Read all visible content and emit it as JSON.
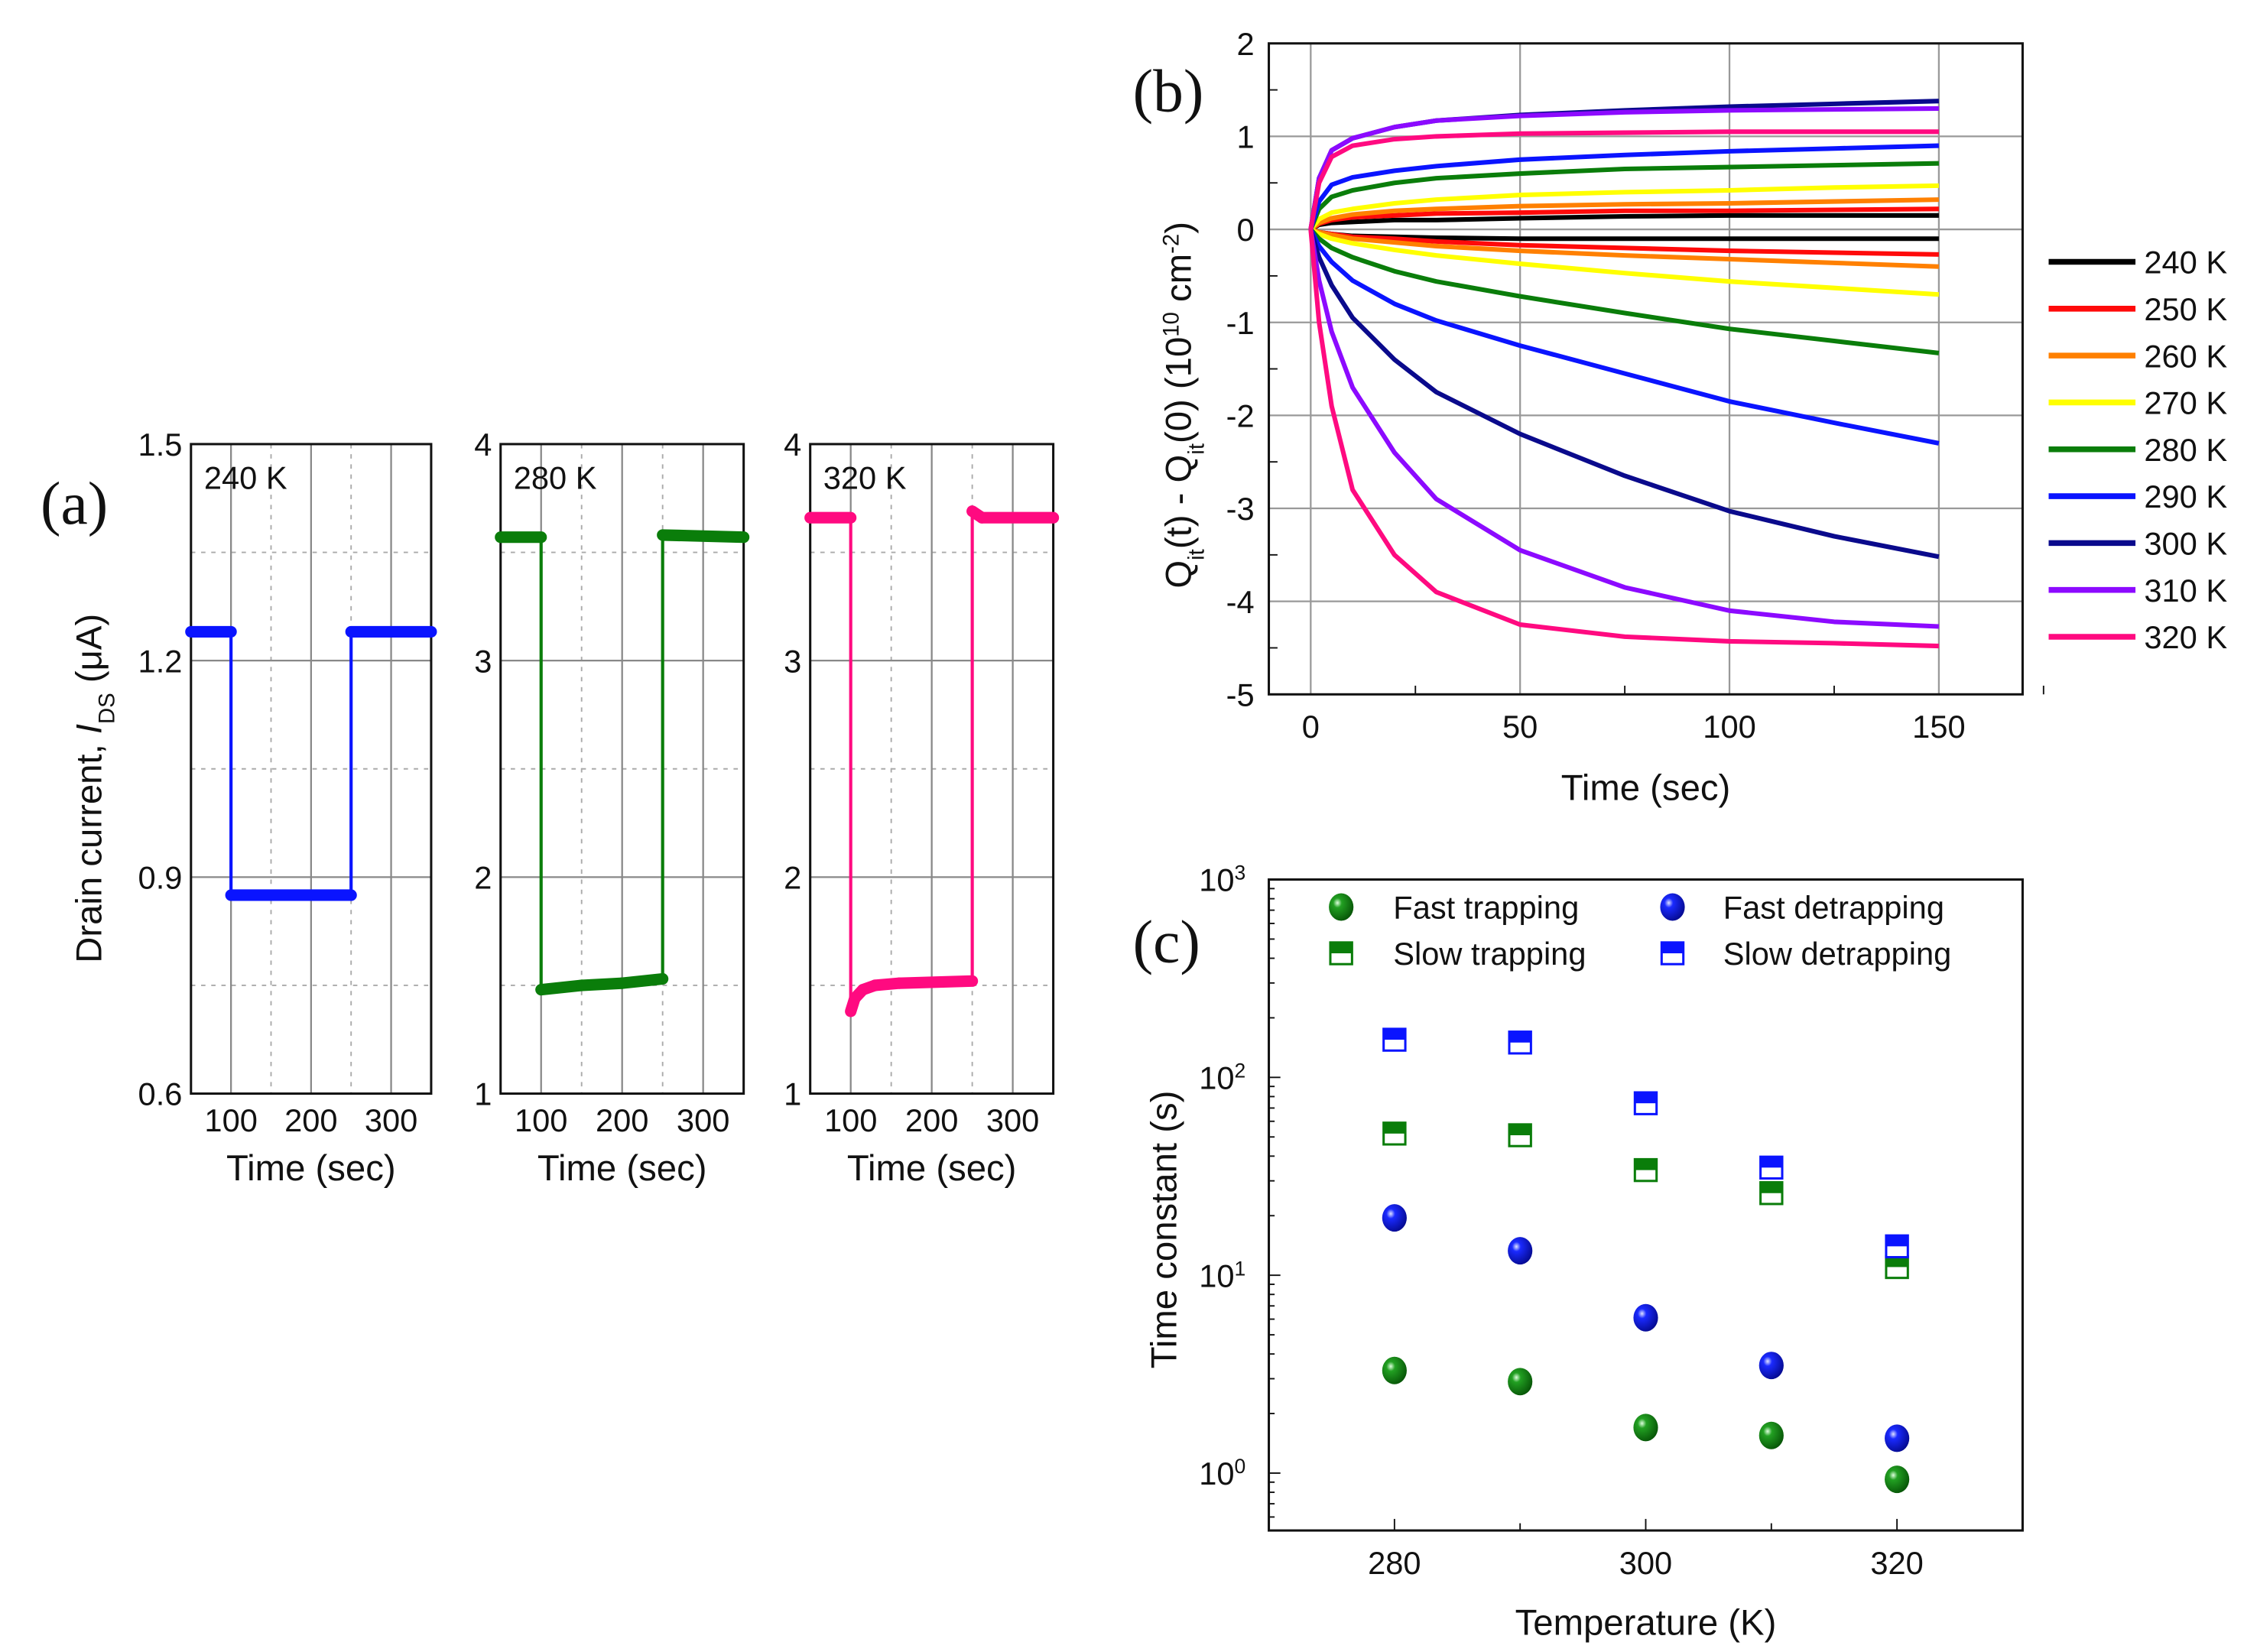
{
  "chart_data": [
    {
      "panel_label": "(a)",
      "type": "line",
      "ylabel_parts": [
        {
          "t": "Drain current, "
        },
        {
          "t": "I",
          "italic": true
        },
        {
          "t": "DS",
          "sub": true
        },
        {
          "t": " (μA)"
        }
      ],
      "subplots": [
        {
          "temp_label": "240 K",
          "color": "#0a14ff",
          "xlabel": "Time (sec)",
          "xlim": [
            50,
            350
          ],
          "ylim": [
            0.6,
            1.5
          ],
          "xticks": [
            "100",
            "200",
            "300"
          ],
          "xtick_values": [
            100,
            200,
            300
          ],
          "yticks": [
            "0.6",
            "0.9",
            "1.2",
            "1.5"
          ],
          "ytick_values": [
            0.6,
            0.9,
            1.2,
            1.5
          ],
          "yminor": [
            0.75,
            1.05,
            1.35
          ],
          "points": [
            [
              50,
              1.24
            ],
            [
              100,
              1.24
            ],
            [
              100,
              0.875
            ],
            [
              250,
              0.875
            ],
            [
              250,
              1.24
            ],
            [
              350,
              1.24
            ]
          ]
        },
        {
          "temp_label": "280 K",
          "color": "#0a7d0a",
          "xlabel": "Time (sec)",
          "xlim": [
            50,
            350
          ],
          "ylim": [
            1,
            4
          ],
          "xticks": [
            "100",
            "200",
            "300"
          ],
          "xtick_values": [
            100,
            200,
            300
          ],
          "yticks": [
            "1",
            "2",
            "3",
            "4"
          ],
          "ytick_values": [
            1,
            2,
            3,
            4
          ],
          "yminor": [
            1.5,
            2.5,
            3.5
          ],
          "points": [
            [
              50,
              3.57
            ],
            [
              100,
              3.57
            ],
            [
              100,
              1.48
            ],
            [
              150,
              1.5
            ],
            [
              200,
              1.51
            ],
            [
              250,
              1.53
            ],
            [
              250,
              3.58
            ],
            [
              350,
              3.57
            ]
          ]
        },
        {
          "temp_label": "320 K",
          "color": "#ff0a80",
          "xlabel": "Time (sec)",
          "xlim": [
            50,
            350
          ],
          "ylim": [
            1,
            4
          ],
          "xticks": [
            "100",
            "200",
            "300"
          ],
          "xtick_values": [
            100,
            200,
            300
          ],
          "yticks": [
            "1",
            "2",
            "3",
            "4"
          ],
          "ytick_values": [
            1,
            2,
            3,
            4
          ],
          "yminor": [
            1.5,
            2.5,
            3.5
          ],
          "points": [
            [
              50,
              3.66
            ],
            [
              100,
              3.66
            ],
            [
              100,
              1.38
            ],
            [
              105,
              1.44
            ],
            [
              115,
              1.48
            ],
            [
              130,
              1.5
            ],
            [
              160,
              1.51
            ],
            [
              250,
              1.52
            ],
            [
              250,
              3.69
            ],
            [
              262,
              3.66
            ],
            [
              350,
              3.66
            ]
          ]
        }
      ]
    },
    {
      "panel_label": "(b)",
      "type": "line",
      "xlabel": "Time (sec)",
      "ylabel_parts": [
        {
          "t": "Q"
        },
        {
          "t": "it",
          "sub": true
        },
        {
          "t": "(t) - Q"
        },
        {
          "t": "it",
          "sub": true
        },
        {
          "t": "(0) (10"
        },
        {
          "t": "10",
          "sup": true
        },
        {
          "t": " cm"
        },
        {
          "t": "-2",
          "sup": true
        },
        {
          "t": ")"
        }
      ],
      "xlim": [
        -10,
        170
      ],
      "ylim": [
        -5,
        2
      ],
      "xticks": [
        "0",
        "50",
        "100",
        "150"
      ],
      "xtick_values": [
        0,
        50,
        100,
        150
      ],
      "yticks": [
        "-5",
        "-4",
        "-3",
        "-2",
        "-1",
        "0",
        "1",
        "2"
      ],
      "ytick_values": [
        -5,
        -4,
        -3,
        -2,
        -1,
        0,
        1,
        2
      ],
      "grid": true,
      "legend_position": "right",
      "t": [
        0,
        2,
        5,
        10,
        20,
        30,
        50,
        75,
        100,
        125,
        150
      ],
      "series": [
        {
          "name": "240 K",
          "color": "#000000",
          "up": [
            0,
            0.05,
            0.07,
            0.08,
            0.1,
            0.1,
            0.12,
            0.14,
            0.15,
            0.15,
            0.15
          ],
          "down": [
            0,
            -0.03,
            -0.05,
            -0.07,
            -0.08,
            -0.09,
            -0.1,
            -0.1,
            -0.1,
            -0.1,
            -0.1
          ]
        },
        {
          "name": "250 K",
          "color": "#ff0a0a",
          "up": [
            0,
            0.06,
            0.1,
            0.13,
            0.15,
            0.17,
            0.18,
            0.2,
            0.2,
            0.21,
            0.22
          ],
          "down": [
            0,
            -0.03,
            -0.05,
            -0.08,
            -0.1,
            -0.13,
            -0.17,
            -0.2,
            -0.23,
            -0.25,
            -0.27
          ]
        },
        {
          "name": "260 K",
          "color": "#ff8000",
          "up": [
            0,
            0.07,
            0.12,
            0.16,
            0.2,
            0.22,
            0.25,
            0.27,
            0.28,
            0.3,
            0.32
          ],
          "down": [
            0,
            -0.03,
            -0.06,
            -0.1,
            -0.14,
            -0.18,
            -0.23,
            -0.28,
            -0.32,
            -0.36,
            -0.4
          ]
        },
        {
          "name": "270 K",
          "color": "#ffff00",
          "up": [
            0,
            0.11,
            0.18,
            0.22,
            0.28,
            0.32,
            0.37,
            0.4,
            0.42,
            0.45,
            0.47
          ],
          "down": [
            0,
            -0.05,
            -0.1,
            -0.15,
            -0.22,
            -0.28,
            -0.37,
            -0.47,
            -0.56,
            -0.63,
            -0.7
          ]
        },
        {
          "name": "280 K",
          "color": "#0a7d0a",
          "up": [
            0,
            0.22,
            0.35,
            0.42,
            0.5,
            0.55,
            0.6,
            0.65,
            0.67,
            0.69,
            0.71
          ],
          "down": [
            0,
            -0.1,
            -0.2,
            -0.3,
            -0.45,
            -0.56,
            -0.72,
            -0.9,
            -1.07,
            -1.2,
            -1.33
          ]
        },
        {
          "name": "290 K",
          "color": "#0a14ff",
          "up": [
            0,
            0.3,
            0.48,
            0.56,
            0.63,
            0.68,
            0.75,
            0.8,
            0.84,
            0.87,
            0.9
          ],
          "down": [
            0,
            -0.18,
            -0.35,
            -0.55,
            -0.8,
            -0.98,
            -1.25,
            -1.55,
            -1.85,
            -2.08,
            -2.3
          ]
        },
        {
          "name": "300 K",
          "color": "#0a0a8c",
          "up": [
            0,
            0.55,
            0.85,
            0.98,
            1.1,
            1.17,
            1.23,
            1.28,
            1.32,
            1.35,
            1.38
          ],
          "down": [
            0,
            -0.3,
            -0.6,
            -0.95,
            -1.4,
            -1.75,
            -2.2,
            -2.65,
            -3.03,
            -3.3,
            -3.52
          ]
        },
        {
          "name": "310 K",
          "color": "#8c0aff",
          "up": [
            0,
            0.55,
            0.85,
            0.98,
            1.1,
            1.17,
            1.22,
            1.26,
            1.28,
            1.29,
            1.3
          ],
          "down": [
            0,
            -0.55,
            -1.1,
            -1.7,
            -2.4,
            -2.9,
            -3.45,
            -3.85,
            -4.1,
            -4.22,
            -4.27
          ]
        },
        {
          "name": "320 K",
          "color": "#ff0a80",
          "up": [
            0,
            0.5,
            0.78,
            0.9,
            0.97,
            1.0,
            1.03,
            1.04,
            1.05,
            1.05,
            1.05
          ],
          "down": [
            0,
            -1.0,
            -1.9,
            -2.8,
            -3.5,
            -3.9,
            -4.25,
            -4.38,
            -4.43,
            -4.45,
            -4.48
          ]
        }
      ]
    },
    {
      "panel_label": "(c)",
      "type": "scatter",
      "xlabel": "Temperature (K)",
      "ylabel": "Time constant (s)",
      "xlim": [
        270,
        330
      ],
      "ylim_log10": [
        -0.29,
        3
      ],
      "yscale": "log",
      "xticks": [
        "280",
        "300",
        "320"
      ],
      "xtick_values": [
        280,
        300,
        320
      ],
      "yticks": [
        {
          "base": "10",
          "exp": "0"
        },
        {
          "base": "10",
          "exp": "1"
        },
        {
          "base": "10",
          "exp": "2"
        },
        {
          "base": "10",
          "exp": "3"
        }
      ],
      "ytick_values": [
        0,
        1,
        2,
        3
      ],
      "legend_position": "top",
      "x": [
        280,
        290,
        300,
        310,
        320
      ],
      "series": [
        {
          "name": "Fast trapping",
          "color": "#0a7d0a",
          "marker": "sphere",
          "values": [
            3.3,
            2.9,
            1.7,
            1.55,
            0.93
          ]
        },
        {
          "name": "Fast detrapping",
          "color": "#0a14ff",
          "marker": "sphere",
          "values": [
            19.5,
            13.3,
            6.1,
            3.5,
            1.5
          ]
        },
        {
          "name": "Slow trapping",
          "color": "#0a7d0a",
          "marker": "half-square",
          "values": [
            52,
            51,
            34,
            26,
            11
          ]
        },
        {
          "name": "Slow detrapping",
          "color": "#0a14ff",
          "marker": "half-square",
          "values": [
            155,
            150,
            74,
            35,
            14
          ]
        }
      ]
    }
  ]
}
